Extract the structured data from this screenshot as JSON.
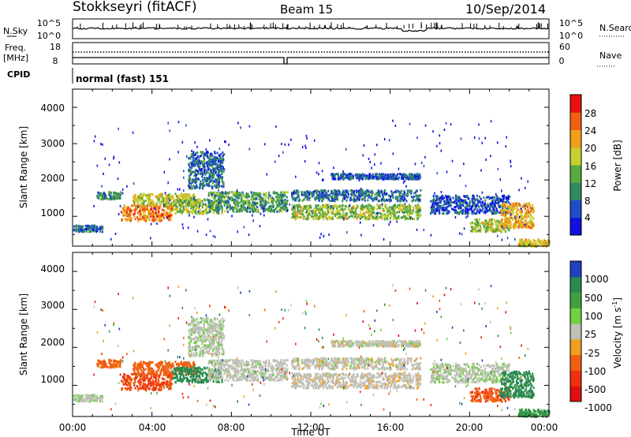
{
  "header": {
    "station": "Stokkseyri (fitACF)",
    "beam": "Beam 15",
    "date": "10/Sep/2014"
  },
  "strip_nsky": {
    "left_label": "N.Sky",
    "left_ticks": [
      "10^5",
      "10^0"
    ],
    "right_label": "N.Search",
    "right_ticks": [
      "10^5",
      "10^0"
    ]
  },
  "strip_freq": {
    "left_label_line1": "Freq.",
    "left_label_line2": "[MHz]",
    "left_ticks": [
      "18",
      "8"
    ],
    "right_label": "Nave",
    "right_ticks": [
      "60",
      "0"
    ]
  },
  "cpid": {
    "label": "CPID",
    "value": "normal (fast) 151"
  },
  "x_axis": {
    "label": "Time UT",
    "ticks": [
      "00:00",
      "04:00",
      "08:00",
      "12:00",
      "16:00",
      "20:00",
      "00:00"
    ]
  },
  "power_panel": {
    "ylabel": "Slant Range [km]",
    "yticks": [
      "1000",
      "2000",
      "3000",
      "4000"
    ],
    "colorbar_label": "Power [dB]",
    "colorbar_ticks": [
      "4",
      "8",
      "12",
      "16",
      "20",
      "24",
      "28"
    ],
    "colorbar_colors": [
      "#1010e0",
      "#204cc8",
      "#2f8a62",
      "#5aaa3e",
      "#c8d030",
      "#f0a018",
      "#f06010",
      "#e81010"
    ]
  },
  "velocity_panel": {
    "ylabel": "Slant Range [km]",
    "yticks": [
      "1000",
      "2000",
      "3000",
      "4000"
    ],
    "colorbar_label": "Velocity [m s",
    "colorbar_label_sup": "-1",
    "colorbar_label_end": "]",
    "colorbar_ticks": [
      "1000",
      "500",
      "100",
      "25",
      "-25",
      "-100",
      "-500",
      "-1000"
    ],
    "colorbar_colors": [
      "#2040c0",
      "#2a8a50",
      "#3fa040",
      "#70d040",
      "#c0c0b8",
      "#f0a020",
      "#f06010",
      "#f03010",
      "#e01010"
    ]
  },
  "chart_data": {
    "type": "heatmap",
    "x_range_hours": [
      0,
      24
    ],
    "y_range_km": [
      180,
      4500
    ],
    "bands": [
      {
        "start": 0.0,
        "end": 1.5,
        "range": [
          600,
          780
        ],
        "power": 8,
        "velocity": 10
      },
      {
        "start": 1.2,
        "end": 2.4,
        "range": [
          1500,
          1700
        ],
        "power": 10,
        "velocity": -150
      },
      {
        "start": 2.4,
        "end": 5.0,
        "range": [
          900,
          1350
        ],
        "power": 24,
        "velocity": -500
      },
      {
        "start": 3.0,
        "end": 6.2,
        "range": [
          1300,
          1650
        ],
        "power": 18,
        "velocity": -300
      },
      {
        "start": 5.0,
        "end": 7.5,
        "range": [
          1100,
          1500
        ],
        "power": 16,
        "velocity": 200
      },
      {
        "start": 5.8,
        "end": 7.6,
        "range": [
          1800,
          2800
        ],
        "power": 8,
        "velocity": 10
      },
      {
        "start": 6.8,
        "end": 10.8,
        "range": [
          1150,
          1700
        ],
        "power": 12,
        "velocity": 5
      },
      {
        "start": 11.0,
        "end": 17.5,
        "range": [
          950,
          1350
        ],
        "power": 16,
        "velocity": -5
      },
      {
        "start": 11.0,
        "end": 17.5,
        "range": [
          1450,
          1750
        ],
        "power": 8,
        "velocity": 0
      },
      {
        "start": 13.0,
        "end": 17.5,
        "range": [
          2050,
          2200
        ],
        "power": 6,
        "velocity": 0
      },
      {
        "start": 18.0,
        "end": 22.0,
        "range": [
          1100,
          1600
        ],
        "power": 6,
        "velocity": 10
      },
      {
        "start": 20.0,
        "end": 22.0,
        "range": [
          600,
          950
        ],
        "power": 16,
        "velocity": -450
      },
      {
        "start": 21.5,
        "end": 23.2,
        "range": [
          700,
          1400
        ],
        "power": 22,
        "velocity": 150
      },
      {
        "start": 22.4,
        "end": 24.0,
        "range": [
          200,
          400
        ],
        "power": 20,
        "velocity": 100
      }
    ]
  }
}
